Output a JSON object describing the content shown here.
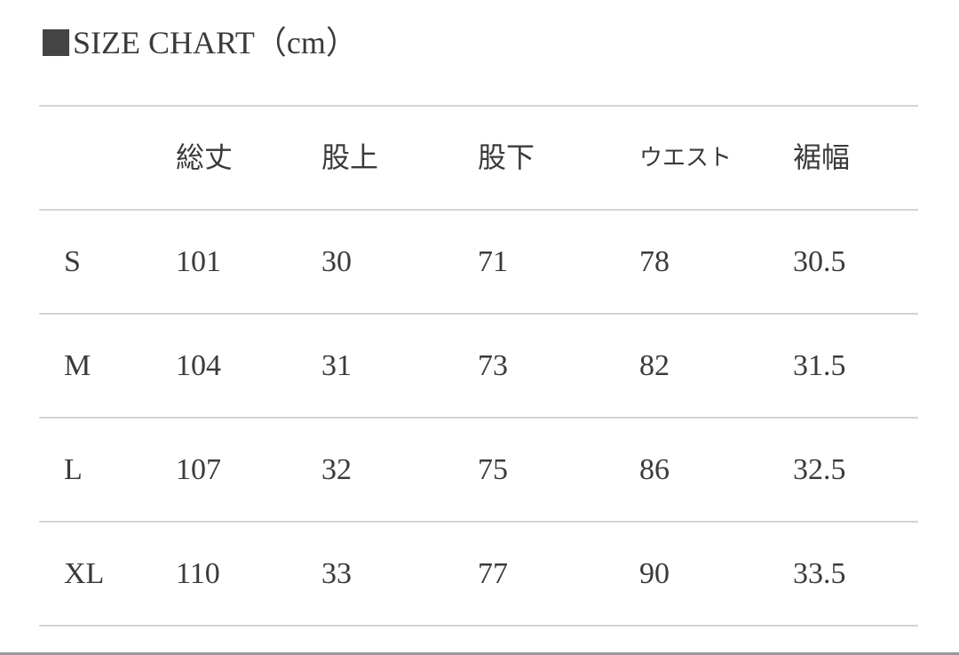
{
  "title": "SIZE CHART（cm）",
  "icon": "black-square-icon",
  "headers": [
    "",
    "総丈",
    "股上",
    "股下",
    "ウエスト",
    "裾幅"
  ],
  "rows": [
    [
      "S",
      "101",
      "30",
      "71",
      "78",
      "30.5"
    ],
    [
      "M",
      "104",
      "31",
      "73",
      "82",
      "31.5"
    ],
    [
      "L",
      "107",
      "32",
      "75",
      "86",
      "32.5"
    ],
    [
      "XL",
      "110",
      "33",
      "77",
      "90",
      "33.5"
    ]
  ]
}
